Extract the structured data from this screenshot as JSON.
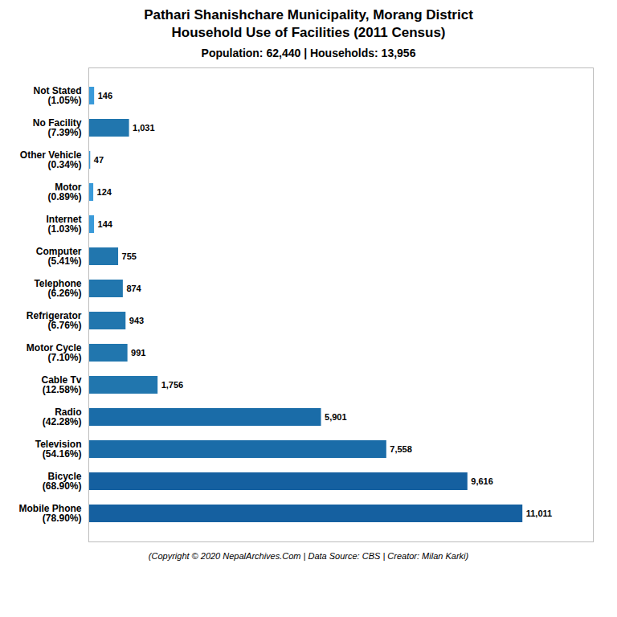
{
  "chart_data": {
    "type": "bar",
    "orientation": "horizontal",
    "title": "Pathari Shanishchare Municipality, Morang District\nHousehold Use of Facilities (2011 Census)",
    "subtitle": "Population: 62,440 | Households: 13,956",
    "caption": "(Copyright © 2020 NepalArchives.Com | Data Source: CBS | Creator: Milan Karki)",
    "categories": [
      "Not Stated\n(1.05%)",
      "No Facility\n(7.39%)",
      "Other Vehicle\n(0.34%)",
      "Motor\n(0.89%)",
      "Internet\n(1.03%)",
      "Computer\n(5.41%)",
      "Telephone\n(6.26%)",
      "Refrigerator\n(6.76%)",
      "Motor Cycle\n(7.10%)",
      "Cable Tv\n(12.58%)",
      "Radio\n(42.28%)",
      "Television\n(54.16%)",
      "Bicycle\n(68.90%)",
      "Mobile Phone\n(78.90%)"
    ],
    "values": [
      146,
      1031,
      47,
      124,
      144,
      755,
      874,
      943,
      991,
      1756,
      5901,
      7558,
      9616,
      11011
    ],
    "value_labels": [
      "146",
      "1,031",
      "47",
      "124",
      "144",
      "755",
      "874",
      "943",
      "991",
      "1,756",
      "5,901",
      "7,558",
      "9,616",
      "11,011"
    ],
    "data_labels": true,
    "colors": [
      "#3a9ad9",
      "#2176ae",
      "#3a9ad9",
      "#3a9ad9",
      "#3a9ad9",
      "#2176ae",
      "#2176ae",
      "#2176ae",
      "#2176ae",
      "#2176ae",
      "#1a6ca8",
      "#1a6ca8",
      "#1560a0",
      "#1560a0"
    ],
    "xlim": [
      0,
      12800
    ],
    "tick_labels": "y"
  }
}
